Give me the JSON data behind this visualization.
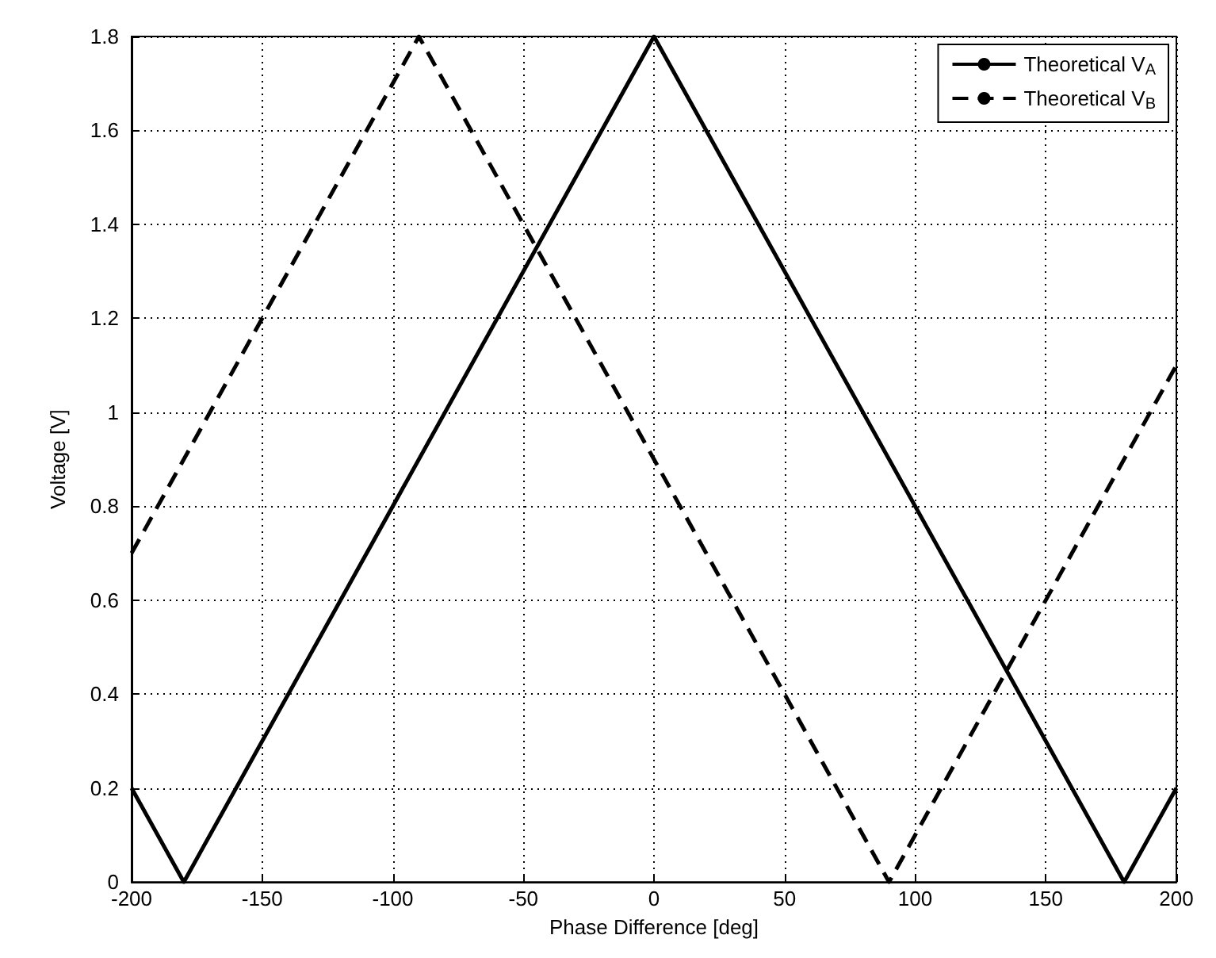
{
  "chart_data": {
    "type": "line",
    "xlabel": "Phase Difference [deg]",
    "ylabel": "Voltage [V]",
    "xlim": [
      -200,
      200
    ],
    "xticks": [
      -200,
      -150,
      -100,
      -50,
      0,
      50,
      100,
      150,
      200
    ],
    "ylim": [
      0,
      1.8
    ],
    "yticks": [
      0,
      0.2,
      0.4,
      0.6,
      0.8,
      1,
      1.2,
      1.4,
      1.6,
      1.8
    ],
    "grid": true,
    "legend": "top right",
    "marker": "none",
    "series": [
      {
        "name": "Theoretical V$_{A}$",
        "color": "#000000",
        "line_style": "solid",
        "x": [
          -200,
          -180,
          0,
          180,
          200
        ],
        "values": [
          0.2,
          0,
          1.8,
          0,
          0.2
        ]
      },
      {
        "name": "Theoretical V$_{B}$",
        "color": "#000000",
        "line_style": "dashed",
        "x": [
          -200,
          -90,
          90,
          200
        ],
        "values": [
          0.7,
          1.8,
          0,
          1.1
        ]
      }
    ]
  }
}
